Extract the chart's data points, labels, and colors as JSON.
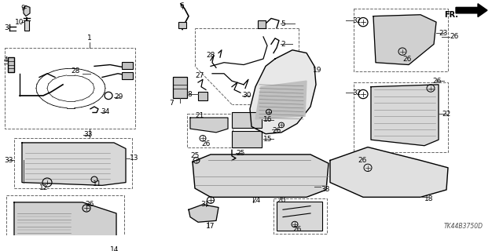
{
  "bg_color": "#ffffff",
  "line_color": "#000000",
  "fig_width": 6.4,
  "fig_height": 3.2,
  "dpi": 100,
  "diagram_code": "TK44B3750D",
  "gray": "#404040",
  "lightgray": "#c8c8c8",
  "midgray": "#888888"
}
